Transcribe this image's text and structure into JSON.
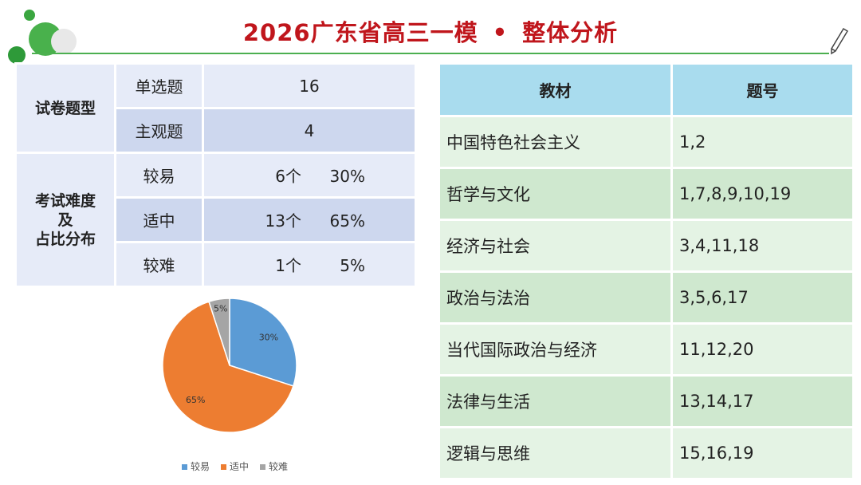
{
  "title": {
    "main": "2026广东省高三一模",
    "separator": "•",
    "sub": "整体分析"
  },
  "icons": {
    "corner": "decorative-circles",
    "pen": "pencil-icon"
  },
  "left_table": {
    "group1_label": "试卷题型",
    "group2_label_lines": [
      "考试难度",
      "及",
      "占比分布"
    ],
    "rows": [
      {
        "label": "单选题",
        "value": "16"
      },
      {
        "label": "主观题",
        "value": "4"
      },
      {
        "label": "较易",
        "count": "6个",
        "pct": "30%"
      },
      {
        "label": "适中",
        "count": "13个",
        "pct": "65%"
      },
      {
        "label": "较难",
        "count": "1个",
        "pct": "5%"
      }
    ]
  },
  "chart_data": {
    "type": "pie",
    "categories": [
      "较易",
      "适中",
      "较难"
    ],
    "values": [
      30,
      65,
      5
    ],
    "labels": [
      "30%",
      "65%",
      "5%"
    ],
    "colors": [
      "#5b9bd5",
      "#ed7d31",
      "#a5a5a5"
    ],
    "legend": "bottom"
  },
  "right_table": {
    "headers": [
      "教材",
      "题号"
    ],
    "rows": [
      {
        "book": "中国特色社会主义",
        "nums": "1,2"
      },
      {
        "book": "哲学与文化",
        "nums": "1,7,8,9,10,19"
      },
      {
        "book": "经济与社会",
        "nums": "3,4,11,18"
      },
      {
        "book": "政治与法治",
        "nums": "3,5,6,17"
      },
      {
        "book": "当代国际政治与经济",
        "nums": "11,12,20"
      },
      {
        "book": "法律与生活",
        "nums": "13,14,17"
      },
      {
        "book": "逻辑与思维",
        "nums": "15,16,19"
      }
    ]
  }
}
